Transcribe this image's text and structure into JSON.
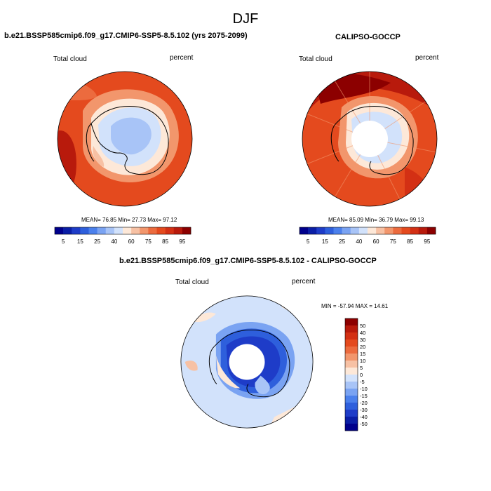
{
  "main_title": "DJF",
  "panels": [
    {
      "id": "model",
      "title": "b.e21.BSSP585cmip6.f09_g17.CMIP6-SSP5-8.5.102 (yrs 2075-2099)",
      "left_label": "Total cloud",
      "right_label": "percent",
      "stats": "MEAN= 76.85  Min= 27.73  Max= 97.12",
      "field_description": "Southern hemisphere polar stereographic total cloud fraction"
    },
    {
      "id": "obs",
      "title": "CALIPSO-GOCCP",
      "left_label": "Total cloud",
      "right_label": "percent",
      "stats": "MEAN= 85.09  Min= 36.79  Max= 99.13"
    },
    {
      "id": "diff",
      "title": "b.e21.BSSP585cmip6.f09_g17.CMIP6-SSP5-8.5.102 - CALIPSO-GOCCP",
      "left_label": "Total cloud",
      "right_label": "percent",
      "stats": "MIN = -57.94 MAX =  14.61"
    }
  ],
  "colorbar_abs": {
    "labels": [
      "5",
      "15",
      "25",
      "40",
      "60",
      "75",
      "85",
      "95"
    ],
    "colors": [
      "#00008c",
      "#0a1ea6",
      "#1e3cc8",
      "#2e5fdc",
      "#4b80ec",
      "#7aa3f2",
      "#a8c4f7",
      "#d2e2fb",
      "#fde8d8",
      "#f7c1a4",
      "#f2966c",
      "#ec6b3e",
      "#e44a1e",
      "#d33014",
      "#b81a0c",
      "#8c0000"
    ]
  },
  "colorbar_diff": {
    "labels": [
      "50",
      "40",
      "30",
      "20",
      "15",
      "10",
      "5",
      "0",
      "-5",
      "-10",
      "-15",
      "-20",
      "-30",
      "-40",
      "-50"
    ],
    "colors": [
      "#8c0000",
      "#b81a0c",
      "#d33014",
      "#e44a1e",
      "#ec6b3e",
      "#f2966c",
      "#f7c1a4",
      "#fde8d8",
      "#d2e2fb",
      "#a8c4f7",
      "#7aa3f2",
      "#4b80ec",
      "#2e5fdc",
      "#1e3cc8",
      "#0a1ea6",
      "#00008c"
    ]
  }
}
